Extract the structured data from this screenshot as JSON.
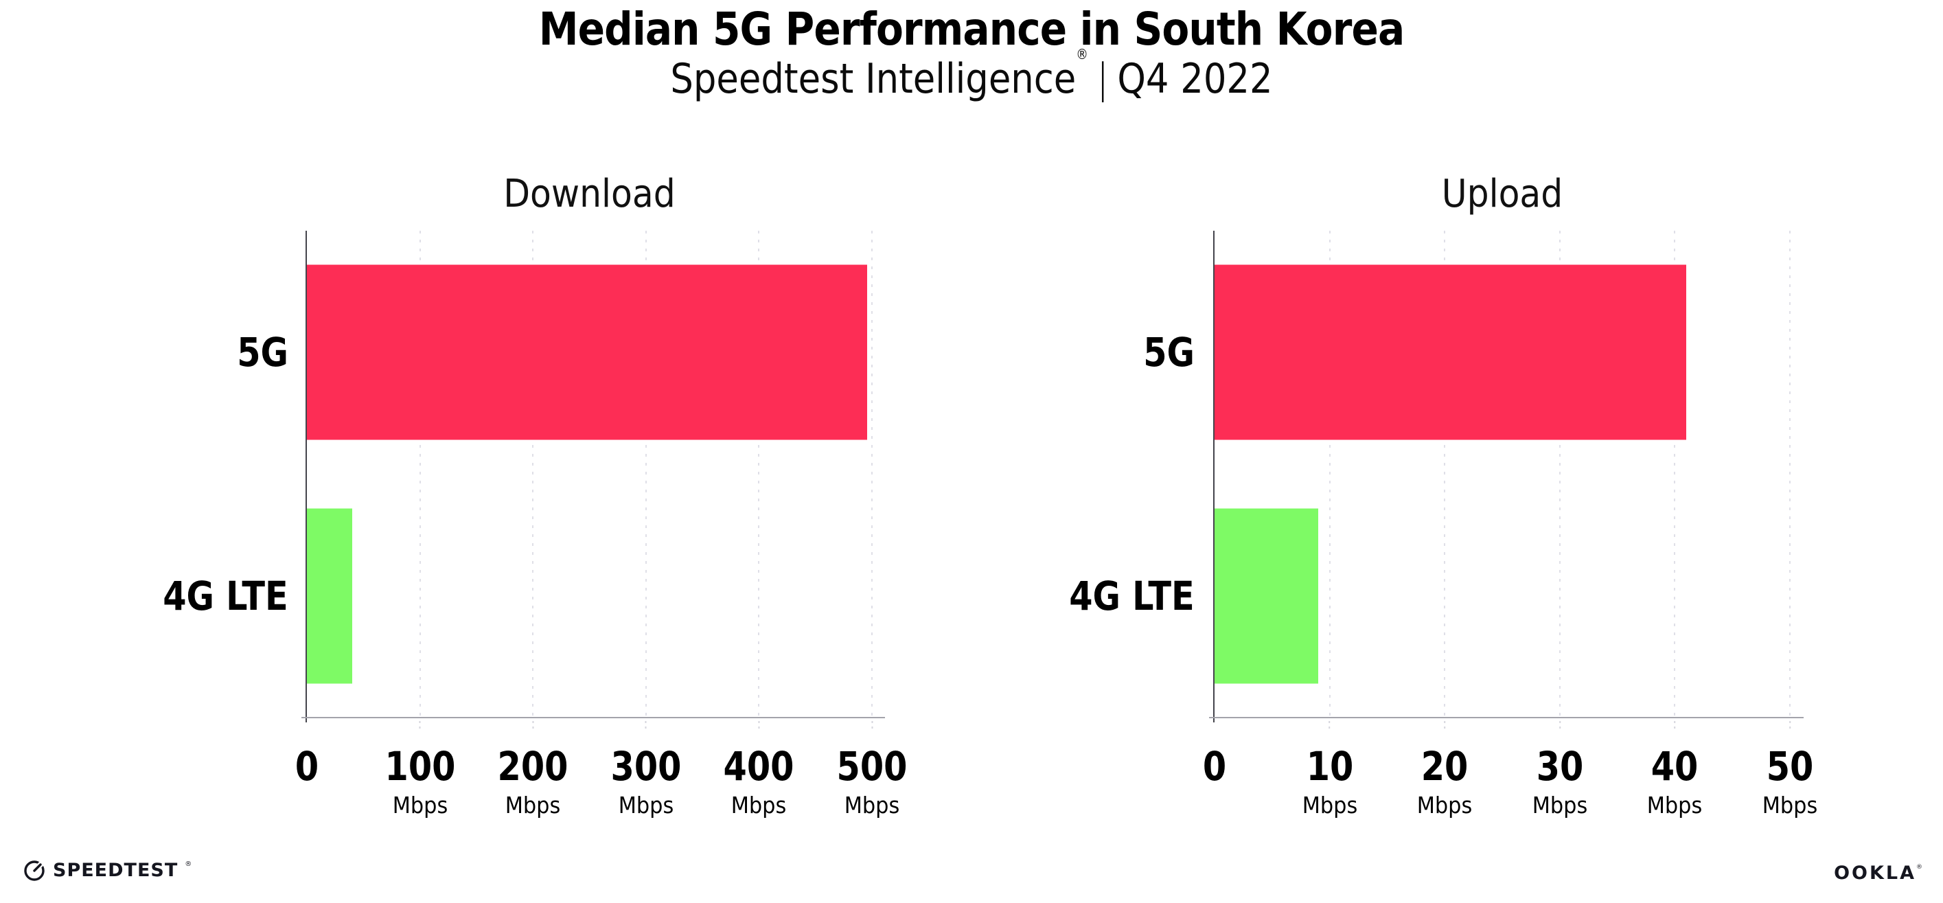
{
  "header": {
    "title": "Median 5G Performance in South Korea",
    "subtitle_brand": "Speedtest Intelligence",
    "subtitle_reg": "®",
    "subtitle_sep": "|",
    "subtitle_period": "Q4 2022"
  },
  "footer": {
    "speedtest_label": "SPEEDTEST",
    "speedtest_reg": "®",
    "ookla_label": "OOKLA",
    "ookla_reg": "®"
  },
  "colors": {
    "bar_5g": "#FD2D55",
    "bar_4g_lte": "#7EFA65",
    "gridline": "#DFDFE7",
    "axis_line": "#A3A3AB",
    "spine": "#44444C",
    "text": "#000000"
  },
  "chart_data": [
    {
      "type": "bar",
      "orientation": "horizontal",
      "title": "Download",
      "categories": [
        "5G",
        "4G LTE"
      ],
      "values": [
        496,
        40
      ],
      "unit": "Mbps",
      "xlabel": "",
      "ylabel": "",
      "xlim": [
        0,
        500
      ],
      "xticks": [
        0,
        100,
        200,
        300,
        400,
        500
      ],
      "bar_colors": [
        "#FD2D55",
        "#7EFA65"
      ],
      "grid": "dotted-vertical",
      "legend": "none"
    },
    {
      "type": "bar",
      "orientation": "horizontal",
      "title": "Upload",
      "categories": [
        "5G",
        "4G LTE"
      ],
      "values": [
        41,
        9
      ],
      "unit": "Mbps",
      "xlabel": "",
      "ylabel": "",
      "xlim": [
        0,
        50
      ],
      "xticks": [
        0,
        10,
        20,
        30,
        40,
        50
      ],
      "bar_colors": [
        "#FD2D55",
        "#7EFA65"
      ],
      "grid": "dotted-vertical",
      "legend": "none"
    }
  ]
}
